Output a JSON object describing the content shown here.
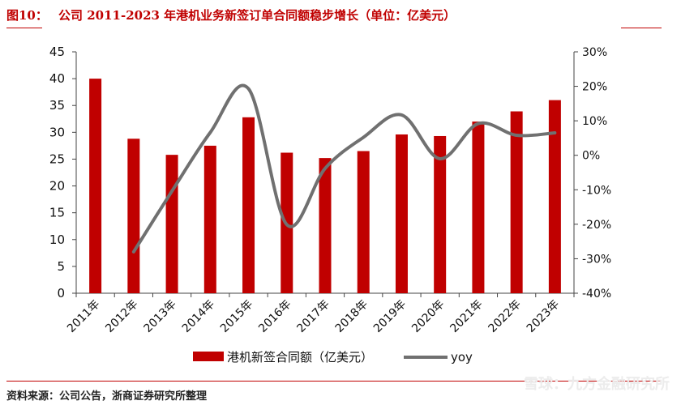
{
  "figure": {
    "label": "图10：",
    "title": "公司 2011-2023 年港机业务新签订单合同额稳步增长（单位：亿美元）",
    "source": "资料来源：公司公告，浙商证券研究所整理",
    "watermark": "雪球：九方金融研究所"
  },
  "colors": {
    "bar": "#c00000",
    "line": "#707070",
    "accent": "#c00000"
  },
  "chart_data": {
    "type": "bar",
    "categories": [
      "2011年",
      "2012年",
      "2013年",
      "2014年",
      "2015年",
      "2016年",
      "2017年",
      "2018年",
      "2019年",
      "2020年",
      "2021年",
      "2022年",
      "2023年"
    ],
    "series": [
      {
        "name": "港机新签合同额（亿美元）",
        "type": "bar",
        "axis": "left",
        "values": [
          40.0,
          28.8,
          25.8,
          27.5,
          32.8,
          26.2,
          25.2,
          26.5,
          29.6,
          29.3,
          32.0,
          33.9,
          36.0
        ]
      },
      {
        "name": "yoy",
        "type": "line",
        "axis": "right",
        "values": [
          null,
          -28.0,
          -10.4,
          6.6,
          19.3,
          -20.1,
          -3.8,
          5.2,
          11.7,
          -1.0,
          9.2,
          5.8,
          6.5
        ]
      }
    ],
    "left_axis": {
      "ylim": [
        0,
        45
      ],
      "ticks": [
        "0",
        "5",
        "10",
        "15",
        "20",
        "25",
        "30",
        "35",
        "40",
        "45"
      ]
    },
    "right_axis": {
      "ylim": [
        -40,
        30
      ],
      "ticks": [
        "-40%",
        "-30%",
        "-20%",
        "-10%",
        "0%",
        "10%",
        "20%",
        "30%"
      ]
    },
    "grid": false,
    "legend_position": "bottom"
  }
}
